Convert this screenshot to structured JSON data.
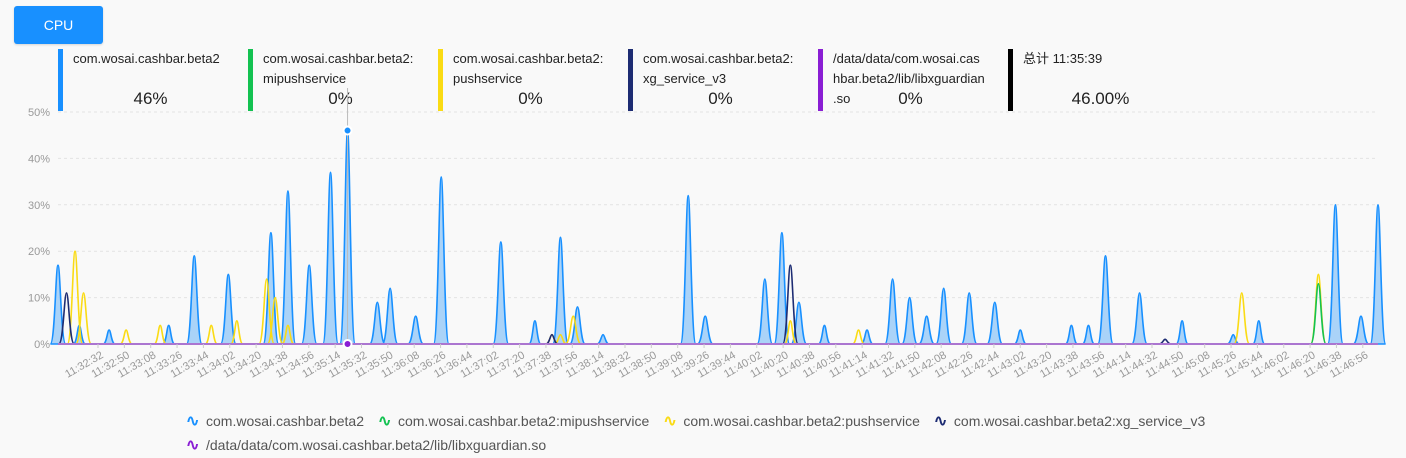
{
  "button": {
    "label": "CPU"
  },
  "info": [
    {
      "name": "com.wosai.cashbar.beta2",
      "value": "46%",
      "color": "#1890ff"
    },
    {
      "name": "com.wosai.cashbar.beta2:\nmipushservice",
      "value": "0%",
      "color": "#13c251"
    },
    {
      "name": "com.wosai.cashbar.beta2:\npushservice",
      "value": "0%",
      "color": "#fadb14"
    },
    {
      "name": "com.wosai.cashbar.beta2:\nxg_service_v3",
      "value": "0%",
      "color": "#1d2c73"
    },
    {
      "name": "/data/data/com.wosai.cas\nhbar.beta2/lib/libxguardian\n.so",
      "value": "0%",
      "color": "#8a1ed4"
    },
    {
      "name": "总计 11:35:39",
      "value": "46.00%",
      "color": "#000000"
    }
  ],
  "chart_data": {
    "type": "area",
    "ylim": [
      0,
      50
    ],
    "yticks": [
      "0%",
      "10%",
      "20%",
      "30%",
      "40%",
      "50%"
    ],
    "xticks": [
      "11:32:32",
      "11:32:50",
      "11:33:08",
      "11:33:26",
      "11:33:44",
      "11:34:02",
      "11:34:20",
      "11:34:38",
      "11:34:56",
      "11:35:14",
      "11:35:32",
      "11:35:50",
      "11:36:08",
      "11:36:26",
      "11:36:44",
      "11:37:02",
      "11:37:20",
      "11:37:38",
      "11:37:56",
      "11:38:14",
      "11:38:32",
      "11:38:50",
      "11:39:08",
      "11:39:26",
      "11:39:44",
      "11:40:02",
      "11:40:20",
      "11:40:38",
      "11:40:56",
      "11:41:14",
      "11:41:32",
      "11:41:50",
      "11:42:08",
      "11:42:26",
      "11:42:44",
      "11:43:02",
      "11:43:20",
      "11:43:38",
      "11:43:56",
      "11:44:14",
      "11:44:32",
      "11:44:50",
      "11:45:08",
      "11:45:26",
      "11:45:44",
      "11:46:02",
      "11:46:20",
      "11:46:38",
      "11:46:56"
    ],
    "tooltip_time": "11:35:39",
    "series": [
      {
        "name": "com.wosai.cashbar.beta2",
        "color": "#1890ff",
        "peaks": [
          [
            0,
            17
          ],
          [
            2.5,
            4
          ],
          [
            6,
            3
          ],
          [
            13,
            4
          ],
          [
            16,
            19
          ],
          [
            20,
            15
          ],
          [
            25,
            24
          ],
          [
            27,
            33
          ],
          [
            29.5,
            17
          ],
          [
            32,
            37
          ],
          [
            34,
            46
          ],
          [
            37.5,
            9
          ],
          [
            39,
            12
          ],
          [
            42,
            6
          ],
          [
            45,
            36
          ],
          [
            52,
            22
          ],
          [
            56,
            5
          ],
          [
            59,
            23
          ],
          [
            61,
            8
          ],
          [
            64,
            2
          ],
          [
            74,
            32
          ],
          [
            76,
            6
          ],
          [
            83,
            14
          ],
          [
            85,
            24
          ],
          [
            87,
            9
          ],
          [
            90,
            4
          ],
          [
            95,
            3
          ],
          [
            98,
            14
          ],
          [
            100,
            10
          ],
          [
            102,
            6
          ],
          [
            104,
            12
          ],
          [
            107,
            11
          ],
          [
            110,
            9
          ],
          [
            113,
            3
          ],
          [
            119,
            4
          ],
          [
            121,
            4
          ],
          [
            123,
            19
          ],
          [
            127,
            11
          ],
          [
            132,
            5
          ],
          [
            138,
            2
          ],
          [
            141,
            5
          ],
          [
            150,
            30
          ],
          [
            153,
            6
          ],
          [
            155,
            30
          ]
        ]
      },
      {
        "name": "com.wosai.cashbar.beta2:mipushservice",
        "color": "#13c251",
        "peaks": [
          [
            148,
            13
          ]
        ]
      },
      {
        "name": "com.wosai.cashbar.beta2:pushservice",
        "color": "#fadb14",
        "peaks": [
          [
            2,
            20
          ],
          [
            3,
            11
          ],
          [
            8,
            3
          ],
          [
            12,
            4
          ],
          [
            18,
            4
          ],
          [
            21,
            5
          ],
          [
            24.5,
            14
          ],
          [
            25.5,
            10
          ],
          [
            27,
            4
          ],
          [
            58,
            2
          ],
          [
            59,
            2
          ],
          [
            60.5,
            6
          ],
          [
            86,
            5
          ],
          [
            94,
            3
          ],
          [
            139,
            11
          ],
          [
            148,
            15
          ]
        ]
      },
      {
        "name": "com.wosai.cashbar.beta2:xg_service_v3",
        "color": "#1d2c73",
        "peaks": [
          [
            1,
            11
          ],
          [
            58,
            2
          ],
          [
            86,
            17
          ],
          [
            130,
            1
          ]
        ]
      },
      {
        "name": "/data/data/com.wosai.cashbar.beta2/lib/libxguardian.so",
        "color": "#8a1ed4",
        "peaks": []
      }
    ]
  },
  "legend": [
    "com.wosai.cashbar.beta2",
    "com.wosai.cashbar.beta2:mipushservice",
    "com.wosai.cashbar.beta2:pushservice",
    "com.wosai.cashbar.beta2:xg_service_v3",
    "/data/data/com.wosai.cashbar.beta2/lib/libxguardian.so"
  ]
}
